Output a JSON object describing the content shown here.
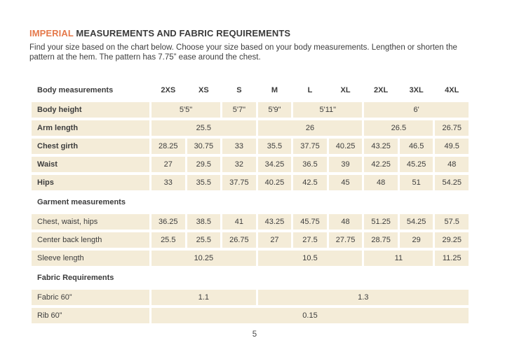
{
  "page": {
    "title_accent": "IMPERIAL",
    "title_rest": " MEASUREMENTS AND FABRIC REQUIREMENTS",
    "subtitle_line1": "Find your size based on the chart below. Choose your size based on your body measurements. Lengthen or shorten the",
    "subtitle_line2": "pattern at the hem. The pattern has 7.75” ease around the chest.",
    "page_number": "5"
  },
  "colors": {
    "accent_orange": "#E5794B",
    "cell_beige": "#F4ECD8",
    "text_dark": "#3C3C3C",
    "background": "#FFFFFF"
  },
  "table": {
    "header": {
      "label": "Body measurements",
      "sizes": [
        "2XS",
        "XS",
        "S",
        "M",
        "L",
        "XL",
        "2XL",
        "3XL",
        "4XL"
      ]
    },
    "sections": [
      {
        "header": "",
        "rows": [
          {
            "label": "Body height",
            "bold": true,
            "cells": [
              {
                "value": "5'5\"",
                "span": 2
              },
              {
                "value": "5'7\"",
                "span": 1
              },
              {
                "value": "5'9\"",
                "span": 1
              },
              {
                "value": "5'11\"",
                "span": 2
              },
              {
                "value": "6'",
                "span": 3
              }
            ]
          },
          {
            "label": "Arm length",
            "bold": true,
            "cells": [
              {
                "value": "25.5",
                "span": 3
              },
              {
                "value": "26",
                "span": 3
              },
              {
                "value": "26.5",
                "span": 2
              },
              {
                "value": "26.75",
                "span": 1
              }
            ]
          },
          {
            "label": "Chest girth",
            "bold": true,
            "cells": [
              {
                "value": "28.25",
                "span": 1
              },
              {
                "value": "30.75",
                "span": 1
              },
              {
                "value": "33",
                "span": 1
              },
              {
                "value": "35.5",
                "span": 1
              },
              {
                "value": "37.75",
                "span": 1
              },
              {
                "value": "40.25",
                "span": 1
              },
              {
                "value": "43.25",
                "span": 1
              },
              {
                "value": "46.5",
                "span": 1
              },
              {
                "value": "49.5",
                "span": 1
              }
            ]
          },
          {
            "label": "Waist",
            "bold": true,
            "cells": [
              {
                "value": "27",
                "span": 1
              },
              {
                "value": "29.5",
                "span": 1
              },
              {
                "value": "32",
                "span": 1
              },
              {
                "value": "34.25",
                "span": 1
              },
              {
                "value": "36.5",
                "span": 1
              },
              {
                "value": "39",
                "span": 1
              },
              {
                "value": "42.25",
                "span": 1
              },
              {
                "value": "45.25",
                "span": 1
              },
              {
                "value": "48",
                "span": 1
              }
            ]
          },
          {
            "label": "Hips",
            "bold": true,
            "cells": [
              {
                "value": "33",
                "span": 1
              },
              {
                "value": "35.5",
                "span": 1
              },
              {
                "value": "37.75",
                "span": 1
              },
              {
                "value": "40.25",
                "span": 1
              },
              {
                "value": "42.5",
                "span": 1
              },
              {
                "value": "45",
                "span": 1
              },
              {
                "value": "48",
                "span": 1
              },
              {
                "value": "51",
                "span": 1
              },
              {
                "value": "54.25",
                "span": 1
              }
            ]
          }
        ]
      },
      {
        "header": "Garment measurements",
        "rows": [
          {
            "label": "Chest, waist, hips",
            "bold": false,
            "cells": [
              {
                "value": "36.25",
                "span": 1
              },
              {
                "value": "38.5",
                "span": 1
              },
              {
                "value": "41",
                "span": 1
              },
              {
                "value": "43.25",
                "span": 1
              },
              {
                "value": "45.75",
                "span": 1
              },
              {
                "value": "48",
                "span": 1
              },
              {
                "value": "51.25",
                "span": 1
              },
              {
                "value": "54.25",
                "span": 1
              },
              {
                "value": "57.5",
                "span": 1
              }
            ]
          },
          {
            "label": "Center back length",
            "bold": false,
            "cells": [
              {
                "value": "25.5",
                "span": 1
              },
              {
                "value": "25.5",
                "span": 1
              },
              {
                "value": "26.75",
                "span": 1
              },
              {
                "value": "27",
                "span": 1
              },
              {
                "value": "27.5",
                "span": 1
              },
              {
                "value": "27.75",
                "span": 1
              },
              {
                "value": "28.75",
                "span": 1
              },
              {
                "value": "29",
                "span": 1
              },
              {
                "value": "29.25",
                "span": 1
              }
            ]
          },
          {
            "label": "Sleeve length",
            "bold": false,
            "cells": [
              {
                "value": "10.25",
                "span": 3
              },
              {
                "value": "10.5",
                "span": 3
              },
              {
                "value": "11",
                "span": 2
              },
              {
                "value": "11.25",
                "span": 1
              }
            ]
          }
        ]
      },
      {
        "header": "Fabric Requirements",
        "rows": [
          {
            "label": "Fabric 60”",
            "bold": false,
            "cells": [
              {
                "value": "1.1",
                "span": 3
              },
              {
                "value": "1.3",
                "span": 6
              }
            ]
          },
          {
            "label": "Rib 60”",
            "bold": false,
            "cells": [
              {
                "value": "0.15",
                "span": 9
              }
            ]
          }
        ]
      }
    ]
  }
}
